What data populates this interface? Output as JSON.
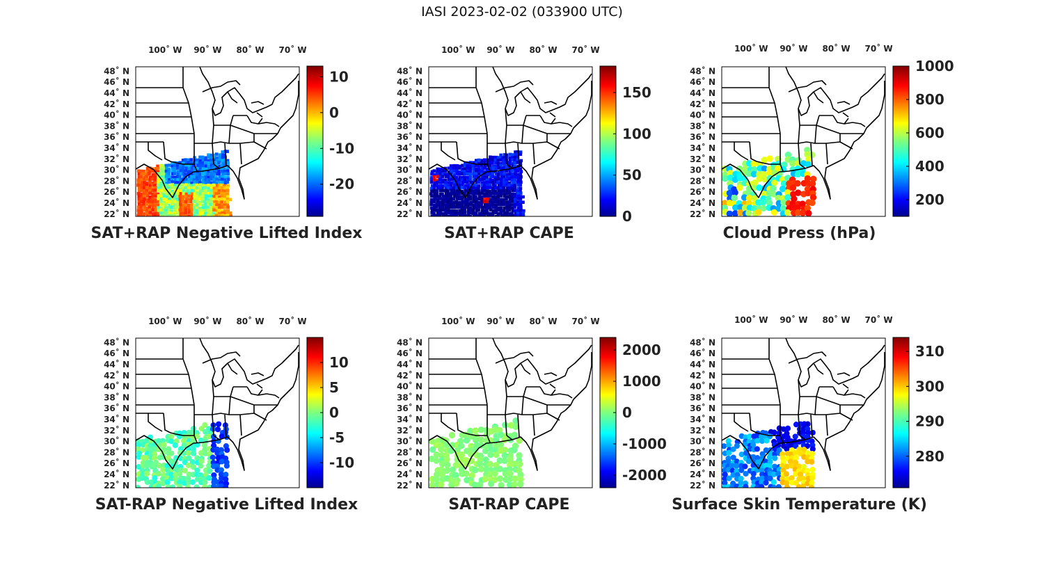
{
  "figure": {
    "title": "IASI 2023-02-02 (033900 UTC)",
    "lon_ticks": [
      "100˚ W",
      "90˚ W",
      "80˚ W",
      "70˚ W"
    ],
    "lat_ticks": [
      "48˚ N",
      "46˚ N",
      "44˚ N",
      "42˚ N",
      "40˚ N",
      "38˚ N",
      "36˚ N",
      "34˚ N",
      "32˚ N",
      "30˚ N",
      "28˚ N",
      "26˚ N",
      "24˚ N",
      "22˚ N"
    ],
    "colormap": "jet"
  },
  "chart_data": [
    {
      "type": "map",
      "title": "SAT+RAP Negative Lifted Index",
      "colorbar": {
        "min": -29,
        "max": 13,
        "ticks": [
          "10",
          "0",
          "-10",
          "-20"
        ],
        "tick_values": [
          10,
          0,
          -10,
          -20
        ]
      },
      "field": "dense swath over TX, LA and Gulf; high values (about 0 to 5) over southwest and central Gulf, low values (about -20 to -25) over LA and northeast"
    },
    {
      "type": "map",
      "title": "SAT+RAP CAPE",
      "colorbar": {
        "min": 0,
        "max": 182,
        "ticks": [
          "150",
          "100",
          "50",
          "0"
        ],
        "tick_values": [
          150,
          100,
          50,
          0
        ]
      },
      "field": "dense swath mostly near 0 to 30 with isolated red spots (about 150) over the Gulf"
    },
    {
      "type": "map",
      "title": "Cloud Press (hPa)",
      "colorbar": {
        "min": 100,
        "max": 1000,
        "ticks": [
          "1000",
          "800",
          "600",
          "400",
          "200"
        ],
        "tick_values": [
          1000,
          800,
          600,
          400,
          200
        ]
      },
      "field": "mixed cloud pressures; high-pressure (about 850) cluster over the eastern Gulf, low-pressure (about 200) points near coast"
    },
    {
      "type": "map",
      "title": "SAT-RAP Negative Lifted Index",
      "colorbar": {
        "min": -15,
        "max": 15,
        "ticks": [
          "10",
          "5",
          "0",
          "-5",
          "-10"
        ],
        "tick_values": [
          10,
          5,
          0,
          -5,
          -10
        ]
      },
      "field": "scattered differences mostly -5 to 0, some -10 in the east"
    },
    {
      "type": "map",
      "title": "SAT-RAP CAPE",
      "colorbar": {
        "min": -2400,
        "max": 2400,
        "ticks": [
          "2000",
          "1000",
          "0",
          "-1000",
          "-2000"
        ],
        "tick_values": [
          2000,
          1000,
          0,
          -1000,
          -2000
        ]
      },
      "field": "nearly uniform differences near 0 (light green) over TX, LA and Gulf"
    },
    {
      "type": "map",
      "title": "Surface Skin Temperature (K)",
      "colorbar": {
        "min": 271,
        "max": 314,
        "ticks": [
          "310",
          "300",
          "290",
          "280"
        ],
        "tick_values": [
          310,
          300,
          290,
          280
        ]
      },
      "field": "cold land (about 275 to 285) over TX and LA, warm Gulf waters (about 297 to 300) in the east"
    }
  ]
}
